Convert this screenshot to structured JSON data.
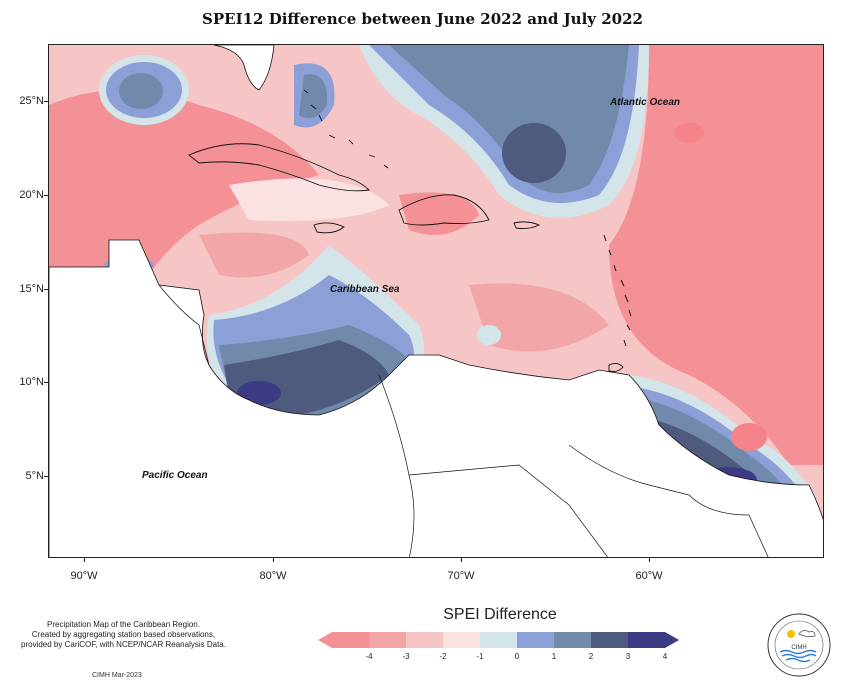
{
  "title": "SPEI12 Difference between June 2022 and July 2022",
  "map": {
    "latitude_labels": [
      "25°N",
      "20°N",
      "15°N",
      "10°N",
      "5°N"
    ],
    "longitude_labels": [
      "90°W",
      "80°W",
      "70°W",
      "60°W"
    ],
    "place_labels": {
      "atlantic": "Atlantic Ocean",
      "caribbean": "Caribbean Sea",
      "pacific": "Pacific Ocean"
    }
  },
  "legend": {
    "title": "SPEI Difference",
    "ticks": [
      "-4",
      "-3",
      "-2",
      "-1",
      "0",
      "1",
      "2",
      "3",
      "4"
    ],
    "colors": [
      "#f49196",
      "#f2a6a8",
      "#f5c4c5",
      "#fae2e2",
      "#d4e5ea",
      "#8c9fd7",
      "#7189aa",
      "#4e5a7e",
      "#3c3a82"
    ]
  },
  "credits": {
    "line1": "Precipitation Map of the Caribbean Region.",
    "line2": "Created by aggregating station based observations,",
    "line3": "provided by CariCOF, with NCEP/NCAR Reanalysis Data.",
    "date": "CIMH Mar-2023"
  },
  "logo": {
    "text": "CIMH"
  }
}
